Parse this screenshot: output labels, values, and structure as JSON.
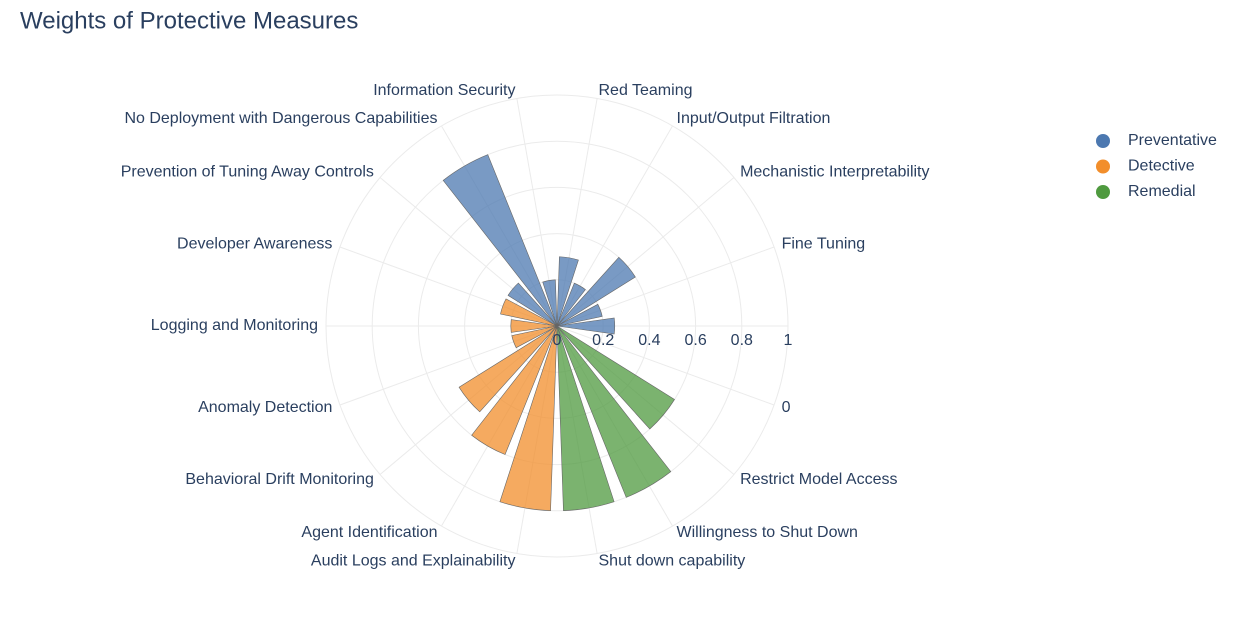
{
  "chart_data": {
    "type": "barpolar",
    "title": "Weights of Protective Measures",
    "categories": [
      null,
      "Fine Tuning",
      "Mechanistic Interpretability",
      "Input/Output Filtration",
      "Red Teaming",
      "Information Security",
      "No Deployment with Dangerous Capabilities",
      "Prevention of Tuning Away Controls",
      "Developer Awareness",
      "Logging and Monitoring",
      "Anomaly Detection",
      "Behavioral Drift Monitoring",
      "Agent Identification",
      "Audit Logs and Explainability",
      "Shut down capability",
      "Willingness to Shut Down",
      "Restrict Model Access",
      "0"
    ],
    "series": [
      {
        "name": "Preventative",
        "color": "#4c78b0",
        "values": [
          0.25,
          0.2,
          0.4,
          0.2,
          0.3,
          0.2,
          0.8,
          0.25,
          null,
          null,
          null,
          null,
          null,
          null,
          null,
          null,
          null,
          null
        ]
      },
      {
        "name": "Detective",
        "color": "#f28e2b",
        "values": [
          null,
          null,
          null,
          null,
          null,
          null,
          null,
          null,
          0.25,
          0.2,
          0.2,
          0.5,
          0.6,
          0.8,
          null,
          null,
          null,
          null
        ]
      },
      {
        "name": "Remedial",
        "color": "#4f9a3f",
        "values": [
          null,
          null,
          null,
          null,
          null,
          null,
          null,
          null,
          null,
          null,
          null,
          null,
          null,
          null,
          0.8,
          0.8,
          0.6,
          null
        ]
      }
    ],
    "rlim": [
      0,
      1
    ],
    "rticks": [
      0,
      0.2,
      0.4,
      0.6,
      0.8,
      1
    ],
    "grid": true,
    "legend": "right"
  }
}
